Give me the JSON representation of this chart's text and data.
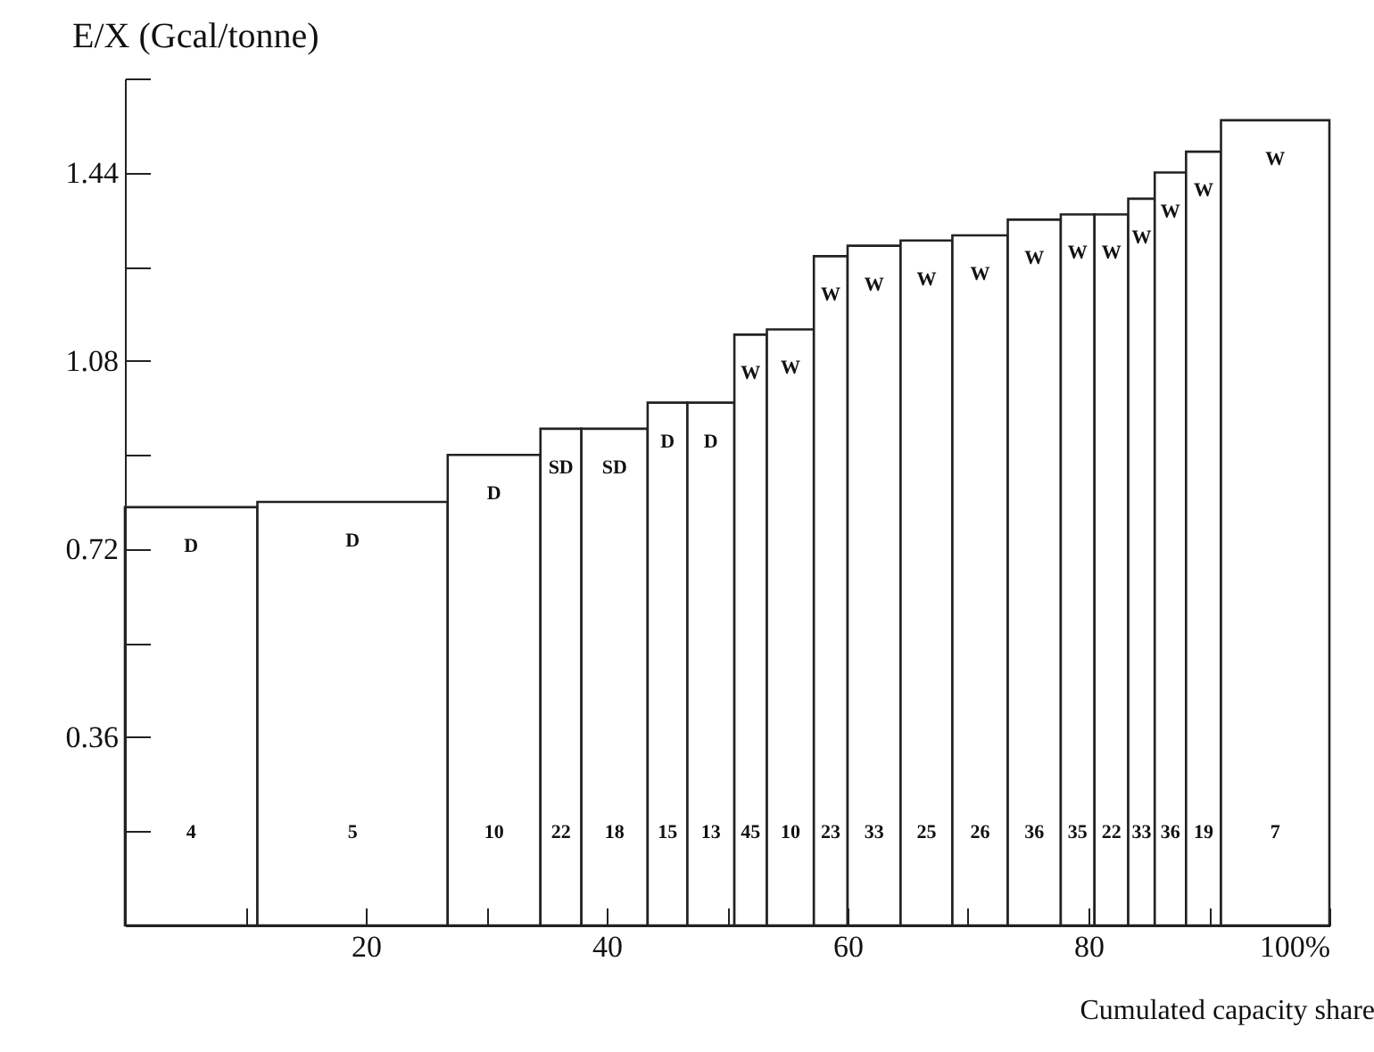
{
  "chart_data": {
    "type": "bar",
    "xlabel": "Cumulated capacity share",
    "ylabel": "E/X (Gcal/tonne)",
    "x": [
      5.5,
      18.9,
      30.65,
      36.2,
      40.65,
      45.05,
      48.65,
      51.95,
      55.25,
      58.6,
      62.2,
      66.55,
      71.0,
      75.5,
      79.1,
      81.9,
      84.4,
      86.8,
      89.55,
      95.5
    ],
    "values": [
      0.8,
      0.81,
      0.9,
      0.95,
      0.95,
      1.0,
      1.0,
      1.13,
      1.14,
      1.28,
      1.3,
      1.31,
      1.32,
      1.35,
      1.36,
      1.36,
      1.39,
      1.44,
      1.48,
      1.54
    ],
    "color": "#ffffff",
    "xlim": [
      0,
      100
    ],
    "xticks": [
      {
        "value": 10,
        "label": null
      },
      20,
      {
        "value": 30,
        "label": null
      },
      40,
      {
        "value": 50,
        "label": null
      },
      60,
      {
        "value": 70,
        "label": null
      },
      80,
      {
        "value": 90,
        "label": null
      },
      {
        "value": 100,
        "label": "100%"
      }
    ],
    "ylim": [
      0,
      1.62
    ],
    "yticks": [
      {
        "value": 0.18,
        "label": null
      },
      0.36,
      {
        "value": 0.54,
        "label": null
      },
      0.72,
      {
        "value": 0.9,
        "label": null
      },
      1.08,
      {
        "value": 1.26,
        "label": null
      },
      1.44,
      {
        "value": 1.62,
        "label": null
      }
    ],
    "grid": false,
    "annotations": [
      "D",
      "D",
      "D",
      "SD",
      "SD",
      "D",
      "D",
      "W",
      "W",
      "W",
      "W",
      "W",
      "W",
      "W",
      "W",
      "W",
      "W",
      "W",
      "W",
      "W",
      "4",
      "5",
      "10",
      "22",
      "18",
      "15",
      "13",
      "45",
      "10",
      "23",
      "33",
      "25",
      "26",
      "36",
      "35",
      "22",
      "33",
      "36",
      "19",
      "7"
    ]
  }
}
